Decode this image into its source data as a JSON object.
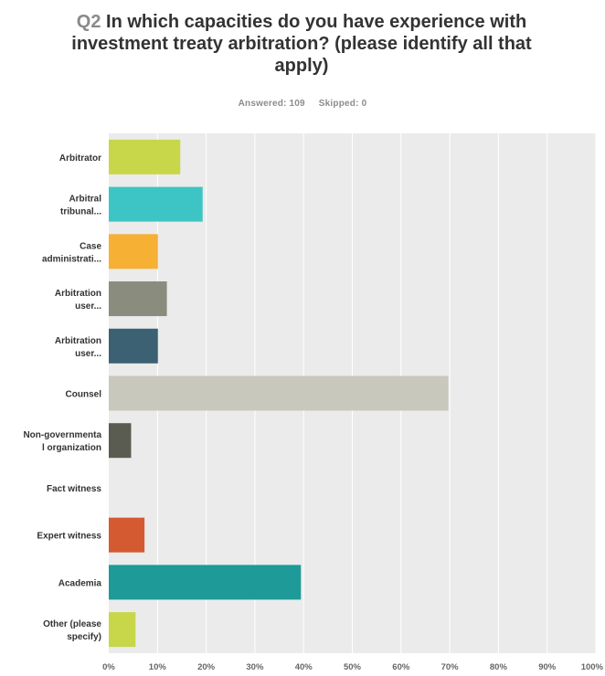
{
  "question": {
    "number": "Q2",
    "text": "In which capacities do you have experience with investment treaty arbitration? (please identify all that apply)"
  },
  "stats": {
    "answered": "Answered: 109",
    "skipped": "Skipped: 0"
  },
  "chart_data": {
    "type": "bar",
    "orientation": "horizontal",
    "title": "Q2 In which capacities do you have experience with investment treaty arbitration? (please identify all that apply)",
    "xlabel": "",
    "ylabel": "",
    "xlim": [
      0,
      100
    ],
    "grid": true,
    "legend": "none",
    "x_ticks": [
      "0%",
      "10%",
      "20%",
      "30%",
      "40%",
      "50%",
      "60%",
      "70%",
      "80%",
      "90%",
      "100%"
    ],
    "categories": [
      [
        "Arbitrator"
      ],
      [
        "Arbitral",
        "tribunal..."
      ],
      [
        "Case",
        "administrati..."
      ],
      [
        "Arbitration",
        "user..."
      ],
      [
        "Arbitration",
        "user..."
      ],
      [
        "Counsel"
      ],
      [
        "Non-governmenta",
        "l organization"
      ],
      [
        "Fact witness"
      ],
      [
        "Expert witness"
      ],
      [
        "Academia"
      ],
      [
        "Other (please",
        "specify)"
      ]
    ],
    "values": [
      14.68,
      19.27,
      10.09,
      11.93,
      10.09,
      69.72,
      4.59,
      0,
      7.34,
      39.45,
      5.5
    ],
    "colors": [
      "#c8d64a",
      "#3cc5c4",
      "#f6b033",
      "#8a8c7d",
      "#3b6173",
      "#c8c8bd",
      "#5a5c52",
      "#9e9e9e",
      "#d35a31",
      "#1e9a98",
      "#c8d64a"
    ],
    "plot_background": "#ebebeb",
    "gridline_color": "#ffffff"
  }
}
